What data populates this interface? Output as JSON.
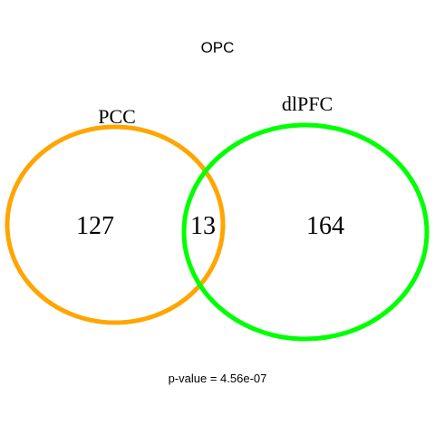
{
  "title": "OPC",
  "sets": [
    {
      "label": "PCC",
      "color": "#FFA500"
    },
    {
      "label": "dlPFC",
      "color": "#00FF00"
    }
  ],
  "counts": {
    "pcc_only": "127",
    "overlap": "13",
    "dlpfc_only": "164"
  },
  "footnote": "p-value = 4.56e-07"
}
